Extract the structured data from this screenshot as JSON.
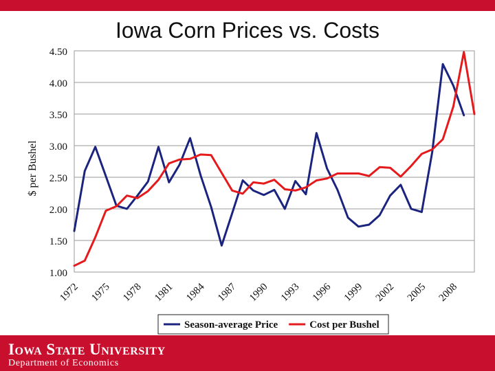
{
  "header": {
    "accent_color": "#c8102e"
  },
  "footer": {
    "university": "Iowa State University",
    "department": "Department of Economics",
    "background": "#c8102e"
  },
  "chart_data": {
    "type": "line",
    "title": "Iowa Corn Prices vs. Costs",
    "ylabel": "$ per Bushel",
    "xlabel": "",
    "ylim": [
      1.0,
      4.5
    ],
    "yticks": [
      "1.00",
      "1.50",
      "2.00",
      "2.50",
      "3.00",
      "3.50",
      "4.00",
      "4.50"
    ],
    "xticks": [
      "1972",
      "1975",
      "1978",
      "1981",
      "1984",
      "1987",
      "1990",
      "1993",
      "1996",
      "1999",
      "2002",
      "2005",
      "2008"
    ],
    "x": [
      1972,
      1973,
      1974,
      1975,
      1976,
      1977,
      1978,
      1979,
      1980,
      1981,
      1982,
      1983,
      1984,
      1985,
      1986,
      1987,
      1988,
      1989,
      1990,
      1991,
      1992,
      1993,
      1994,
      1995,
      1996,
      1997,
      1998,
      1999,
      2000,
      2001,
      2002,
      2003,
      2004,
      2005,
      2006,
      2007,
      2008,
      2009,
      2010
    ],
    "grid": true,
    "legend_position": "bottom",
    "series": [
      {
        "name": "Season-average Price",
        "color": "#1a237e",
        "values": [
          1.65,
          2.6,
          2.98,
          2.52,
          2.05,
          2.0,
          2.21,
          2.43,
          2.98,
          2.42,
          2.7,
          3.12,
          2.53,
          2.03,
          1.42,
          1.93,
          2.45,
          2.29,
          2.22,
          2.3,
          2.0,
          2.44,
          2.23,
          3.2,
          2.64,
          2.3,
          1.86,
          1.72,
          1.75,
          1.9,
          2.21,
          2.38,
          2.0,
          1.95,
          2.9,
          4.29,
          3.95,
          3.48,
          null
        ]
      },
      {
        "name": "Cost per Bushel",
        "color": "#e41a1c",
        "values": [
          1.1,
          1.18,
          1.55,
          1.97,
          2.04,
          2.21,
          2.17,
          2.28,
          2.46,
          2.72,
          2.78,
          2.79,
          2.86,
          2.85,
          2.57,
          2.29,
          2.24,
          2.42,
          2.4,
          2.46,
          2.31,
          2.29,
          2.34,
          2.45,
          2.48,
          2.56,
          2.56,
          2.56,
          2.52,
          2.66,
          2.65,
          2.51,
          2.68,
          2.87,
          2.94,
          3.1,
          3.62,
          4.48,
          3.5
        ]
      }
    ]
  }
}
